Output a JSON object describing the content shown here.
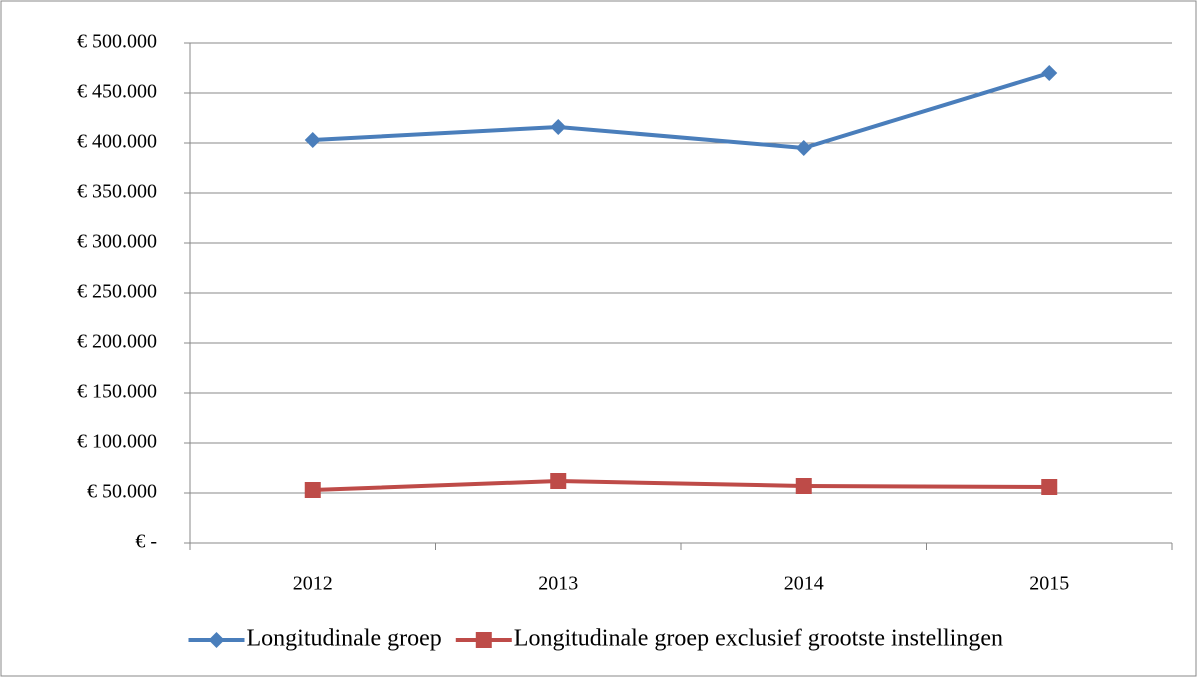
{
  "chart_data": {
    "type": "line",
    "categories": [
      "2012",
      "2013",
      "2014",
      "2015"
    ],
    "series": [
      {
        "name": "Longitudinale groep",
        "color": "#4a7ebb",
        "marker": "diamond",
        "values": [
          403000,
          416000,
          395000,
          470000
        ]
      },
      {
        "name": "Longitudinale groep exclusief grootste instellingen",
        "color": "#be4b48",
        "marker": "square",
        "values": [
          53000,
          62000,
          57000,
          56000
        ]
      }
    ],
    "ylim": [
      0,
      500000
    ],
    "yticks": [
      {
        "value": 0,
        "label": "€ -"
      },
      {
        "value": 50000,
        "label": "€ 50.000"
      },
      {
        "value": 100000,
        "label": "€ 100.000"
      },
      {
        "value": 150000,
        "label": "€ 150.000"
      },
      {
        "value": 200000,
        "label": "€ 200.000"
      },
      {
        "value": 250000,
        "label": "€ 250.000"
      },
      {
        "value": 300000,
        "label": "€ 300.000"
      },
      {
        "value": 350000,
        "label": "€ 350.000"
      },
      {
        "value": 400000,
        "label": "€ 400.000"
      },
      {
        "value": 450000,
        "label": "€ 450.000"
      },
      {
        "value": 500000,
        "label": "€ 500.000"
      }
    ],
    "grid": true,
    "legend": "bottom"
  }
}
